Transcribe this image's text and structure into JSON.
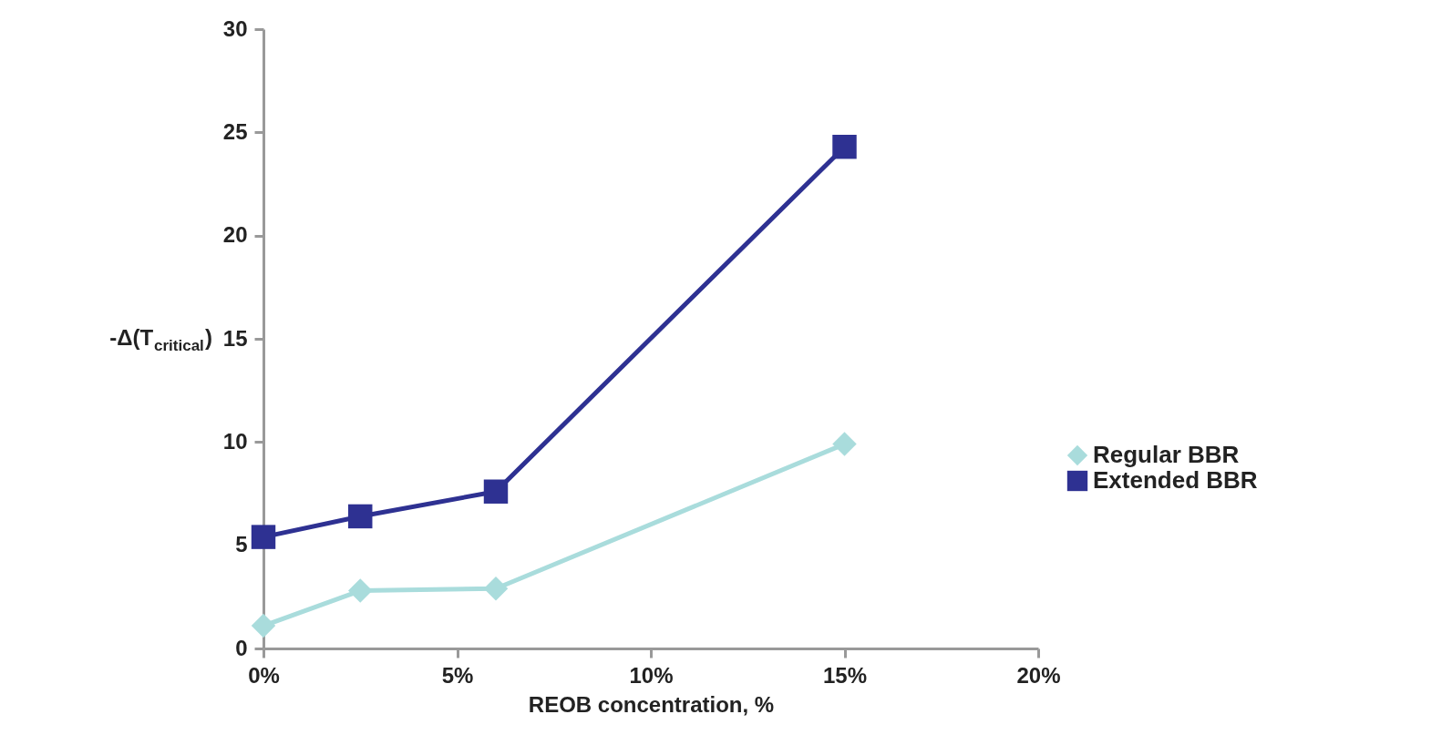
{
  "chart_data": {
    "type": "line",
    "xlabel": "REOB concentration, %",
    "ylabel": "-Δ(T$_{critical}$)",
    "x": [
      0,
      2.5,
      6,
      15
    ],
    "series": [
      {
        "name": "Regular BBR",
        "color": "#a9dcdc",
        "marker": "diamond",
        "values": [
          1.1,
          2.8,
          2.9,
          9.9
        ]
      },
      {
        "name": "Extended BBR",
        "color": "#2e3192",
        "marker": "square",
        "values": [
          5.4,
          6.4,
          7.6,
          24.3
        ]
      }
    ],
    "xlim": [
      0,
      20
    ],
    "xticks": [
      {
        "value": 0,
        "label": "0%"
      },
      {
        "value": 5,
        "label": "5%"
      },
      {
        "value": 10,
        "label": "10%"
      },
      {
        "value": 15,
        "label": "15%"
      },
      {
        "value": 20,
        "label": "20%"
      }
    ],
    "ylim": [
      0,
      30
    ],
    "yticks": [
      0,
      5,
      10,
      15,
      20,
      25,
      30
    ],
    "grid": false,
    "legend": "right",
    "line_style": "solid"
  }
}
